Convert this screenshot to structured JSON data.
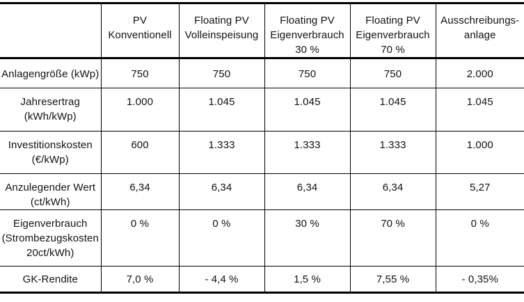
{
  "page": {
    "background_color": "#ffffff",
    "text_color": "#121212",
    "border_color": "#000000"
  },
  "table": {
    "header": [
      "",
      "PV\nKonventionell",
      "Floating PV\nVolleinspeisung",
      "Floating PV\nEigenverbrauch\n30 %",
      "Floating PV\nEigenverbrauch\n70 %",
      "Ausschreibungs-\nanlage"
    ],
    "rows": [
      {
        "label": "Anlagengröße (kWp)",
        "values": [
          "750",
          "750",
          "750",
          "750",
          "2.000"
        ]
      },
      {
        "label": "Jahresertrag\n(kWh/kWp)",
        "values": [
          "1.000",
          "1.045",
          "1.045",
          "1.045",
          "1.045"
        ]
      },
      {
        "label": "Investitionskosten\n(€/kWp)",
        "values": [
          "600",
          "1.333",
          "1.333",
          "1.333",
          "1.000"
        ]
      },
      {
        "label": "Anzulegender Wert\n(ct/kWh)",
        "values": [
          "6,34",
          "6,34",
          "6,34",
          "6,34",
          "5,27"
        ]
      },
      {
        "label": "Eigenverbrauch\n(Strombezugskosten\n20ct/kWh)",
        "values": [
          "0 %",
          "0 %",
          "30 %",
          "70 %",
          "0 %"
        ]
      },
      {
        "label": "GK-Rendite",
        "values": [
          "7,0 %",
          "- 4,4 %",
          "1,5 %",
          "7,55 %",
          "- 0,35%"
        ]
      }
    ]
  }
}
